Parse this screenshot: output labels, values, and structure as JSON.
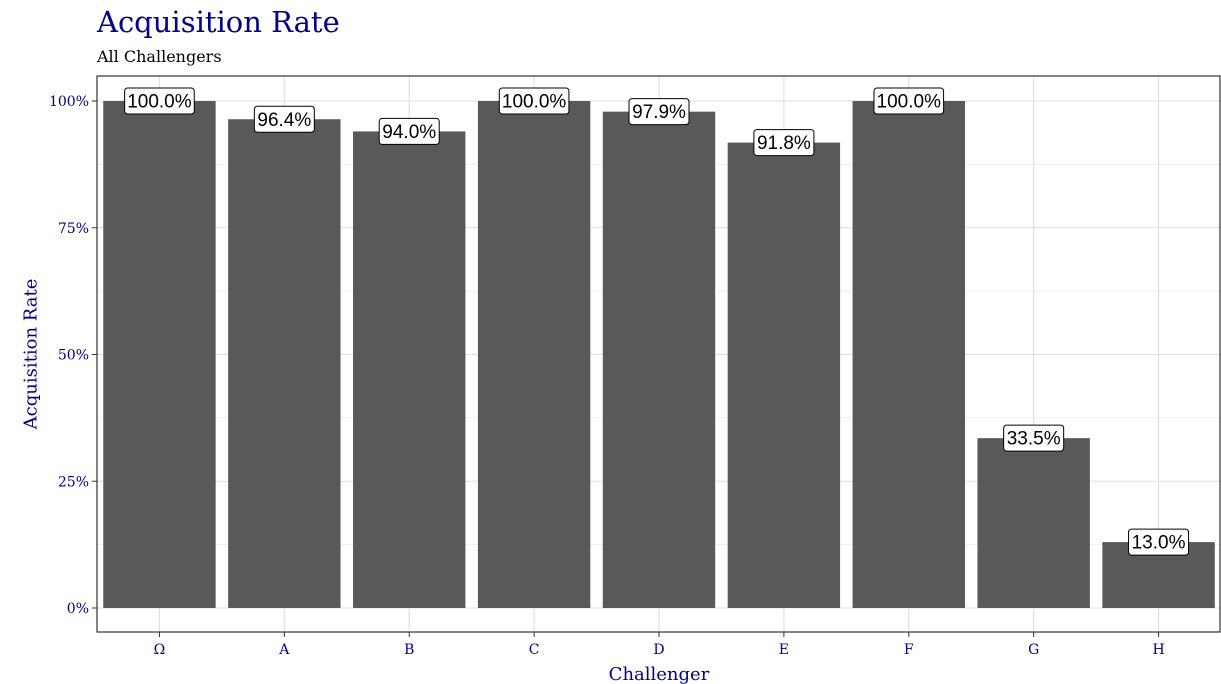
{
  "chart_data": {
    "type": "bar",
    "title": "Acquisition Rate",
    "subtitle": "All Challengers",
    "xlabel": "Challenger",
    "ylabel": "Acquisition Rate",
    "categories": [
      "Ω",
      "A",
      "B",
      "C",
      "D",
      "E",
      "F",
      "G",
      "H"
    ],
    "values": [
      100.0,
      96.4,
      94.0,
      100.0,
      97.9,
      91.8,
      100.0,
      33.5,
      13.0
    ],
    "data_labels": [
      "100.0%",
      "96.4%",
      "94.0%",
      "100.0%",
      "97.9%",
      "91.8%",
      "100.0%",
      "33.5%",
      "13.0%"
    ],
    "ylim": [
      0,
      100
    ],
    "yticks": [
      0,
      25,
      50,
      75,
      100
    ],
    "ytick_labels": [
      "0%",
      "25%",
      "50%",
      "75%",
      "100%"
    ],
    "grid": true,
    "legend": "none"
  },
  "colors": {
    "bar": "#595959",
    "text_accent": "#00008b",
    "grid": "#dedede",
    "frame": "#333333"
  }
}
